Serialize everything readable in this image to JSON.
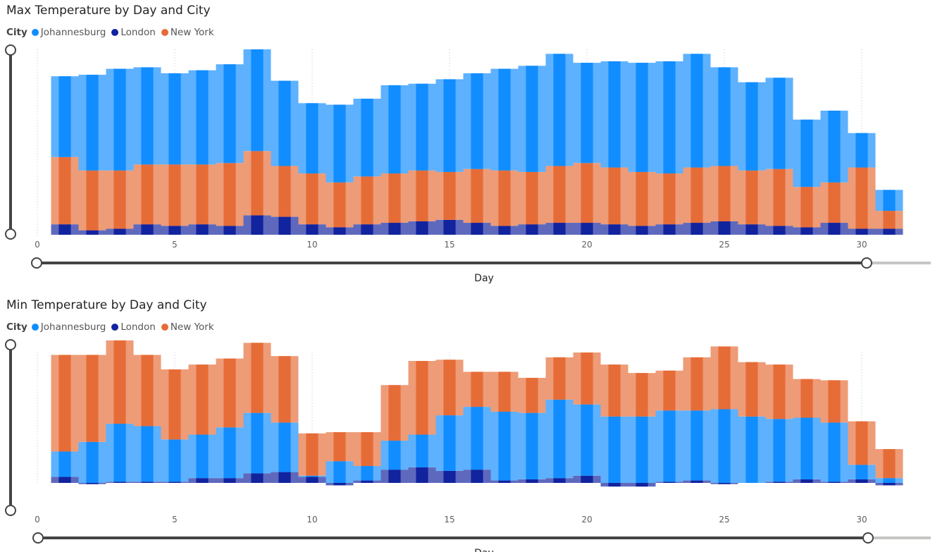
{
  "chart_data": [
    {
      "type": "area",
      "title": "Max Temperature by Day and City",
      "legend_title": "City",
      "xlabel": "Day",
      "x_ticks": [
        0,
        5,
        10,
        15,
        20,
        25,
        30
      ],
      "xlim": [
        0,
        31
      ],
      "ylim": [
        0,
        62
      ],
      "x": [
        1,
        2,
        3,
        4,
        5,
        6,
        7,
        8,
        9,
        10,
        11,
        12,
        13,
        14,
        15,
        16,
        17,
        18,
        19,
        20,
        21,
        22,
        23,
        24,
        25,
        26,
        27,
        28,
        29,
        30,
        31
      ],
      "series": [
        {
          "name": "London",
          "color": "#12239e",
          "values": [
            3.5,
            1.5,
            2,
            3.5,
            3,
            3.5,
            3,
            6.5,
            6,
            3.5,
            2.5,
            3.5,
            4,
            4.5,
            5,
            4,
            3,
            3.5,
            4,
            4,
            3.5,
            3,
            3.5,
            4,
            4.5,
            3.5,
            3,
            2.5,
            4,
            2,
            2
          ]
        },
        {
          "name": "New York",
          "color": "#e66c37",
          "values": [
            22.5,
            20,
            19.5,
            20,
            20.5,
            20,
            21,
            21.5,
            17,
            17,
            15,
            16,
            16.5,
            17,
            16,
            18,
            18.5,
            17.5,
            19,
            20,
            19,
            18,
            17,
            18.5,
            18.5,
            18,
            19,
            13.5,
            13.5,
            20.5,
            6
          ]
        },
        {
          "name": "Johannesburg",
          "color": "#118dff",
          "values": [
            27,
            32,
            34,
            32.5,
            30.5,
            31.5,
            33,
            34,
            28.5,
            23.5,
            26,
            26,
            29.5,
            29,
            31,
            32,
            34,
            35.5,
            37.5,
            33.5,
            35.5,
            36.5,
            37.5,
            38,
            33,
            29.5,
            30.5,
            22.5,
            24,
            11.5,
            7
          ]
        }
      ]
    },
    {
      "type": "area",
      "title": "Min Temperature by Day and City",
      "legend_title": "City",
      "xlabel": "Day",
      "x_ticks": [
        0,
        5,
        10,
        15,
        20,
        25,
        30
      ],
      "xlim": [
        0,
        31
      ],
      "ylim": [
        -3,
        54
      ],
      "x": [
        1,
        2,
        3,
        4,
        5,
        6,
        7,
        8,
        9,
        10,
        11,
        12,
        13,
        14,
        15,
        16,
        17,
        18,
        19,
        20,
        21,
        22,
        23,
        24,
        25,
        26,
        27,
        28,
        29,
        30,
        31
      ],
      "series": [
        {
          "name": "London",
          "color": "#12239e",
          "values": [
            2.5,
            -0.5,
            0.5,
            0.5,
            0.5,
            2,
            2,
            4,
            4.5,
            2.5,
            -1,
            1,
            5.5,
            6.5,
            5,
            5.5,
            1,
            1.5,
            2,
            3,
            -1.5,
            -1.5,
            0.5,
            1,
            -0.5,
            0,
            0.5,
            1.5,
            0.5,
            1.5,
            -1
          ]
        },
        {
          "name": "Johannesburg",
          "color": "#118dff",
          "values": [
            10.5,
            17,
            24,
            23,
            17.5,
            18,
            21,
            25,
            20.5,
            0.5,
            9,
            6,
            12,
            13.5,
            23,
            26,
            28.5,
            27.5,
            32.5,
            29.5,
            27.5,
            27.5,
            29.5,
            29,
            30.5,
            27.5,
            26,
            25.5,
            24.5,
            6,
            2
          ]
        },
        {
          "name": "New York",
          "color": "#e66c37",
          "values": [
            40,
            36,
            34.5,
            29.5,
            29,
            29,
            28.5,
            29,
            27.5,
            17.5,
            12,
            14,
            23,
            30.5,
            23,
            14.5,
            16.5,
            14.5,
            17.5,
            21.5,
            21.5,
            18,
            16.5,
            22,
            26,
            22.5,
            22.5,
            16,
            17.5,
            18,
            12
          ]
        }
      ]
    }
  ]
}
